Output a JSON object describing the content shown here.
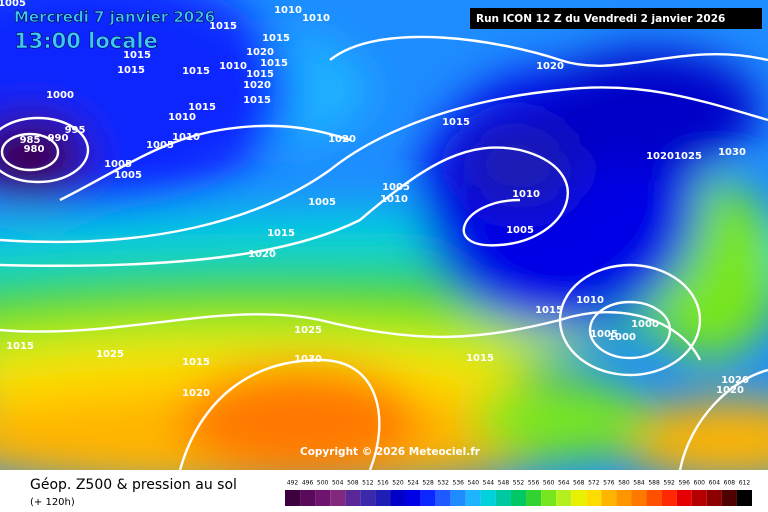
{
  "map": {
    "date": "Mercredi 7 janvier 2026",
    "time": "13:00 locale",
    "run": "Run ICON 12 Z du Vendredi 2 janvier 2026",
    "copyright": "Copyright © 2026 Meteociel.fr",
    "isobar_labels": [
      1005,
      1010,
      1010,
      1015,
      1015,
      1015,
      1020,
      1015,
      1015,
      1015,
      1010,
      1015,
      1020,
      1015,
      1000,
      1015,
      1010,
      995,
      985,
      990,
      980,
      1010,
      1005,
      1020,
      1020,
      1015,
      1020,
      1025,
      1030,
      1005,
      1005,
      1005,
      1010,
      1010,
      1005,
      1005,
      1015,
      1020,
      1010,
      1015,
      1000,
      1005,
      1000,
      1025,
      1015,
      1025,
      1030,
      1015,
      1015,
      1020,
      1020,
      1020
    ]
  },
  "legend": {
    "title": "Géop. Z500 & pression au sol",
    "subtitle": "(+ 120h)",
    "values": [
      492,
      496,
      500,
      504,
      508,
      512,
      516,
      520,
      524,
      528,
      532,
      536,
      540,
      544,
      548,
      552,
      556,
      560,
      564,
      568,
      572,
      576,
      580,
      584,
      588,
      592,
      596,
      600,
      604,
      608,
      612
    ],
    "colors": [
      "#3c003c",
      "#5a0a5a",
      "#6e146e",
      "#82287d",
      "#5a2896",
      "#3c28aa",
      "#1e1eb4",
      "#0000c8",
      "#0000e6",
      "#0a28ff",
      "#1e5aff",
      "#1e8cff",
      "#1eb4ff",
      "#00d2dc",
      "#00c8a0",
      "#00c864",
      "#32d232",
      "#78e61e",
      "#b4f01e",
      "#e6f000",
      "#ffdc00",
      "#ffb400",
      "#ff9600",
      "#ff7800",
      "#ff5000",
      "#ff2800",
      "#e60000",
      "#b40000",
      "#8c0000",
      "#500000",
      "#000000"
    ]
  }
}
